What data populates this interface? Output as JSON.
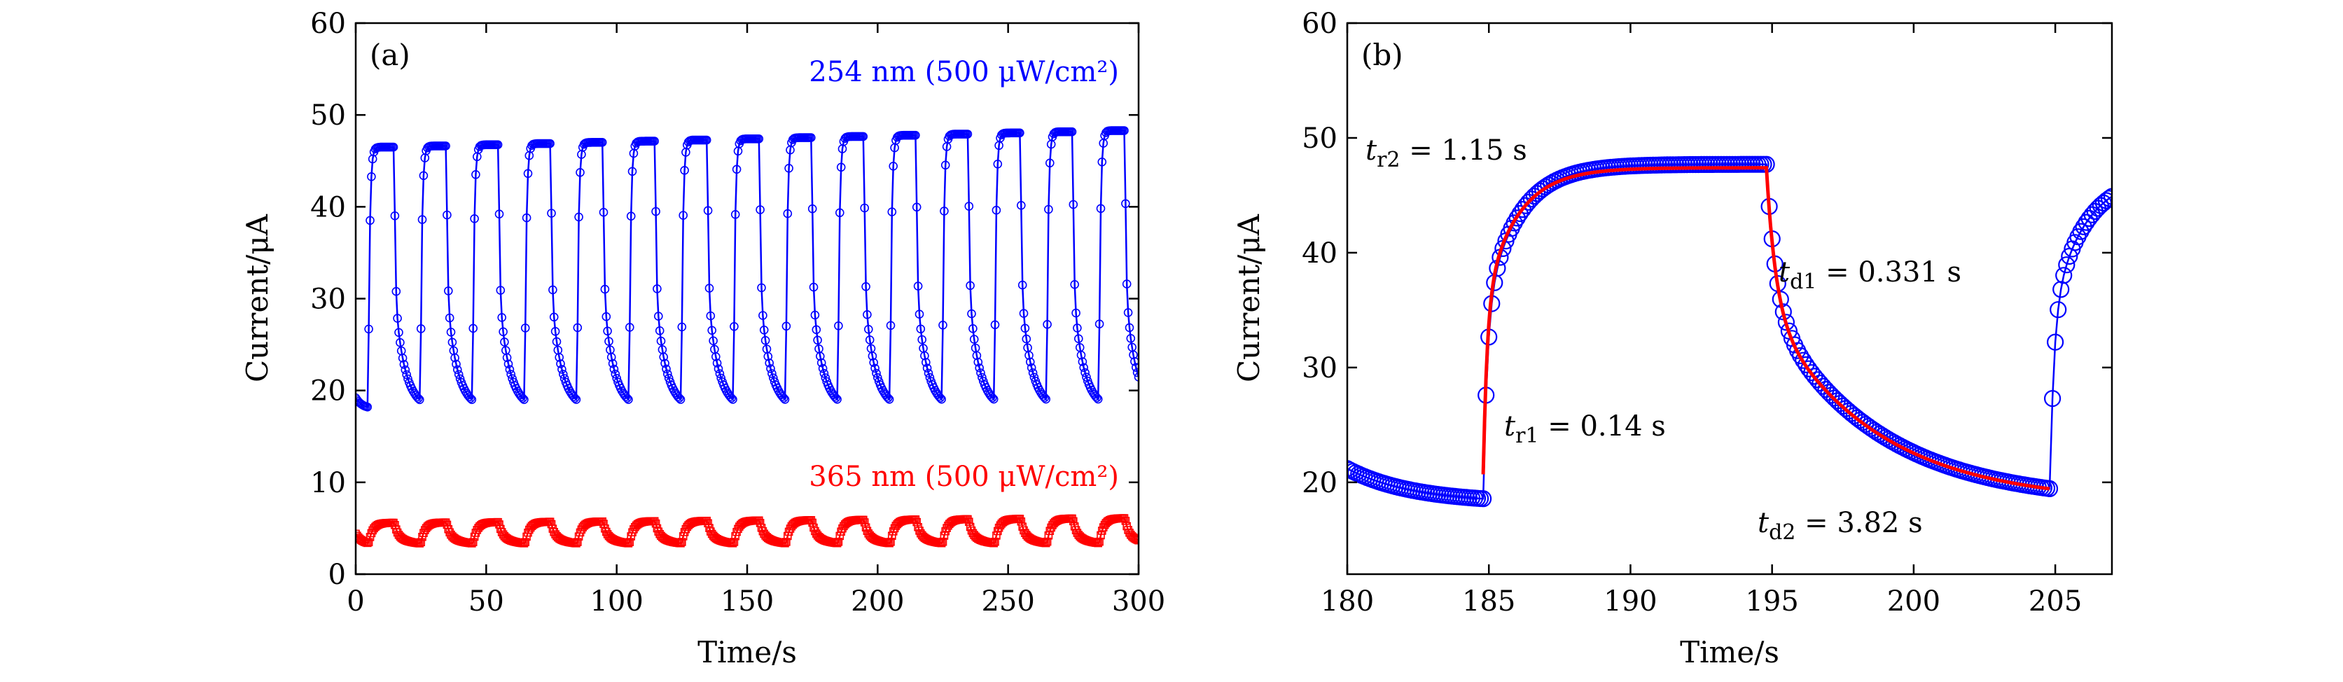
{
  "chart_data": [
    {
      "type": "scatter",
      "panel_label": "(a)",
      "xlabel": "Time/s",
      "ylabel": "Current/μA",
      "xlim": [
        0,
        300
      ],
      "ylim": [
        0,
        60
      ],
      "xticks": [
        0,
        50,
        100,
        150,
        200,
        250,
        300
      ],
      "yticks": [
        0,
        10,
        20,
        30,
        40,
        50,
        60
      ],
      "period_s": 20,
      "series": [
        {
          "name": "254 nm (500 μW/cm²)",
          "color": "#0000ff",
          "marker": "open-circle",
          "on_start_s": 4.8,
          "dark_min": 18.0,
          "peak_start": 46.5,
          "peak_end": 48.3
        },
        {
          "name": "365 nm (500 μW/cm²)",
          "color": "#ff0000",
          "marker": "open-square",
          "on_start_s": 4.8,
          "dark_min": 3.2,
          "peak_start": 5.6,
          "peak_end": 6.1
        }
      ],
      "annotations": [
        {
          "text": "254 nm (500 μW/cm²)",
          "color": "#0000ff"
        },
        {
          "text": "365 nm (500 μW/cm²)",
          "color": "#ff0000"
        }
      ],
      "grid": false
    },
    {
      "type": "scatter",
      "panel_label": "(b)",
      "xlabel": "Time/s",
      "ylabel": "Current/μA",
      "xlim": [
        180,
        207
      ],
      "ylim": [
        12,
        60
      ],
      "xticks": [
        180,
        185,
        190,
        195,
        200,
        205
      ],
      "yticks": [
        20,
        30,
        40,
        50,
        60
      ],
      "series": [
        {
          "name": "data",
          "color": "#0000ff",
          "marker": "open-circle",
          "on_s": 184.8,
          "off_s": 194.8,
          "on2_s": 204.8,
          "dark_level": 18.2,
          "plateau": 47.7
        },
        {
          "name": "fit",
          "color": "#ff0000",
          "marker": "line",
          "on_s": 184.8,
          "off_s": 194.8,
          "end_s": 204.8,
          "dark_level": 18.2,
          "plateau": 47.4
        }
      ],
      "annotations": [
        {
          "t": "t",
          "sub": "r2",
          "val": " = 1.15 s"
        },
        {
          "t": "t",
          "sub": "r1",
          "val": " = 0.14 s"
        },
        {
          "t": "t",
          "sub": "d1",
          "val": " = 0.331 s"
        },
        {
          "t": "t",
          "sub": "d2",
          "val": " = 3.82 s"
        }
      ],
      "grid": false
    }
  ]
}
